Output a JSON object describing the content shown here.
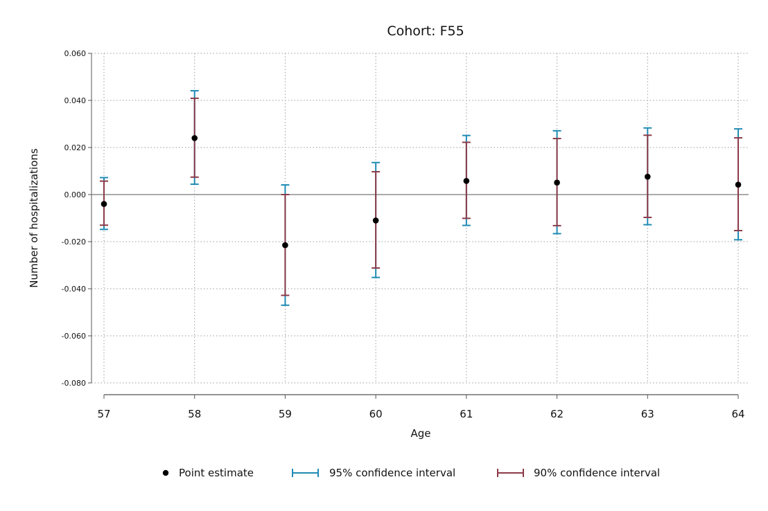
{
  "chart_data": {
    "type": "scatter",
    "title": "Cohort: F55",
    "xlabel": "Age",
    "ylabel": "Number of hospitalizations",
    "ylim": [
      -0.08,
      0.06
    ],
    "xlim": [
      57,
      64
    ],
    "y_ticks": [
      "0.060",
      "0.040",
      "0.020",
      "0.000",
      "-0.020",
      "-0.040",
      "-0.060",
      "-0.080"
    ],
    "x": [
      57,
      58,
      59,
      60,
      61,
      62,
      63,
      64
    ],
    "x_tick_labels": [
      "57",
      "58",
      "59",
      "60",
      "61",
      "62",
      "63",
      "64"
    ],
    "grid": true,
    "zero_line": true,
    "legend_position": "bottom",
    "series": [
      {
        "name": "Point estimate",
        "kind": "point",
        "color": "#000000",
        "values": [
          -0.004,
          0.024,
          -0.0215,
          -0.011,
          0.0058,
          0.0051,
          0.0076,
          0.0042
        ]
      },
      {
        "name": "95% confidence interval",
        "kind": "errorbar",
        "color": "#1f8bb4",
        "lower": [
          -0.0148,
          0.0044,
          -0.047,
          -0.0352,
          -0.0131,
          -0.0166,
          -0.0128,
          -0.0192
        ],
        "upper": [
          0.0072,
          0.0441,
          0.0041,
          0.0136,
          0.0251,
          0.0271,
          0.0283,
          0.0279
        ]
      },
      {
        "name": "90% confidence interval",
        "kind": "errorbar",
        "color": "#8b3a48",
        "lower": [
          -0.013,
          0.0074,
          -0.0428,
          -0.0312,
          -0.0101,
          -0.0132,
          -0.0097,
          -0.0153
        ],
        "upper": [
          0.0057,
          0.0409,
          0.0,
          0.0097,
          0.0222,
          0.0238,
          0.0252,
          0.0241
        ]
      }
    ]
  }
}
